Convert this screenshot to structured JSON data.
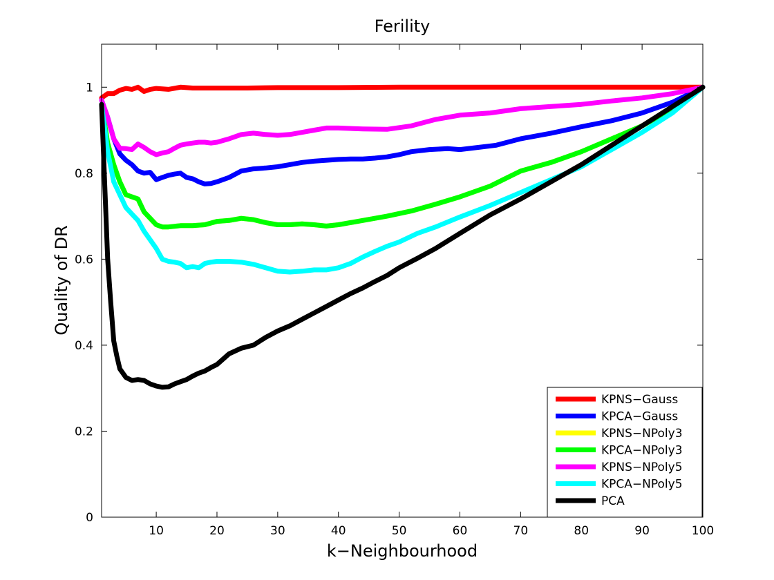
{
  "chart_data": {
    "type": "line",
    "title": "Ferility",
    "xlabel": "k−Neighbourhood",
    "ylabel": "Quality of DR",
    "xlim": [
      1,
      100
    ],
    "ylim": [
      0,
      1.1
    ],
    "xticks": [
      10,
      20,
      30,
      40,
      50,
      60,
      70,
      80,
      90,
      100
    ],
    "xtick_labels": [
      "10",
      "20",
      "30",
      "40",
      "50",
      "60",
      "70",
      "80",
      "90",
      "100"
    ],
    "yticks": [
      0,
      0.2,
      0.4,
      0.6,
      0.8,
      1
    ],
    "ytick_labels": [
      "0",
      "0.2",
      "0.4",
      "0.6",
      "0.8",
      "1"
    ],
    "grid": false,
    "legend_position": "bottom-right",
    "series": [
      {
        "name": "KPNS−Gauss",
        "color": "#ff0000",
        "x": [
          1,
          2,
          3,
          4,
          5,
          6,
          7,
          8,
          9,
          10,
          12,
          14,
          16,
          18,
          20,
          25,
          30,
          40,
          50,
          60,
          70,
          80,
          90,
          100
        ],
        "y": [
          0.975,
          0.985,
          0.985,
          0.993,
          0.997,
          0.995,
          1.0,
          0.99,
          0.995,
          0.997,
          0.995,
          1.0,
          0.998,
          0.998,
          0.998,
          0.998,
          0.999,
          0.999,
          1.0,
          1.0,
          1.0,
          1.0,
          1.0,
          1.0
        ]
      },
      {
        "name": "KPCA−Gauss",
        "color": "#0000ff",
        "x": [
          1,
          2,
          3,
          4,
          5,
          6,
          7,
          8,
          9,
          10,
          11,
          12,
          13,
          14,
          15,
          16,
          17,
          18,
          19,
          20,
          22,
          24,
          26,
          28,
          30,
          32,
          34,
          36,
          38,
          40,
          42,
          44,
          46,
          48,
          50,
          52,
          55,
          58,
          60,
          63,
          66,
          70,
          75,
          80,
          85,
          90,
          95,
          100
        ],
        "y": [
          0.97,
          0.93,
          0.88,
          0.845,
          0.83,
          0.82,
          0.805,
          0.8,
          0.802,
          0.785,
          0.79,
          0.795,
          0.798,
          0.8,
          0.79,
          0.787,
          0.78,
          0.775,
          0.776,
          0.78,
          0.79,
          0.805,
          0.81,
          0.812,
          0.815,
          0.82,
          0.825,
          0.828,
          0.83,
          0.832,
          0.833,
          0.833,
          0.835,
          0.838,
          0.843,
          0.85,
          0.855,
          0.857,
          0.855,
          0.86,
          0.865,
          0.88,
          0.893,
          0.908,
          0.922,
          0.94,
          0.965,
          1.0
        ]
      },
      {
        "name": "KPNS−NPoly3",
        "color": "#ffff00",
        "x": [
          1,
          2,
          3,
          4,
          5,
          6,
          7,
          8,
          9,
          10,
          11,
          12,
          14,
          16,
          18,
          20,
          22,
          24,
          26,
          28,
          30,
          32,
          34,
          36,
          38,
          40,
          44,
          48,
          52,
          56,
          60,
          65,
          70,
          75,
          80,
          85,
          90,
          95,
          100
        ],
        "y": [
          0.96,
          0.87,
          0.82,
          0.78,
          0.75,
          0.745,
          0.74,
          0.71,
          0.695,
          0.68,
          0.675,
          0.675,
          0.678,
          0.678,
          0.68,
          0.688,
          0.69,
          0.695,
          0.692,
          0.685,
          0.68,
          0.68,
          0.682,
          0.68,
          0.677,
          0.68,
          0.69,
          0.7,
          0.712,
          0.728,
          0.745,
          0.77,
          0.805,
          0.825,
          0.85,
          0.88,
          0.91,
          0.95,
          1.0
        ]
      },
      {
        "name": "KPCA−NPoly3",
        "color": "#00ff00",
        "x": [
          1,
          2,
          3,
          4,
          5,
          6,
          7,
          8,
          9,
          10,
          11,
          12,
          14,
          16,
          18,
          20,
          22,
          24,
          26,
          28,
          30,
          32,
          34,
          36,
          38,
          40,
          44,
          48,
          52,
          56,
          60,
          65,
          70,
          75,
          80,
          85,
          90,
          95,
          100
        ],
        "y": [
          0.96,
          0.87,
          0.82,
          0.78,
          0.75,
          0.745,
          0.74,
          0.71,
          0.695,
          0.68,
          0.675,
          0.675,
          0.678,
          0.678,
          0.68,
          0.688,
          0.69,
          0.695,
          0.692,
          0.685,
          0.68,
          0.68,
          0.682,
          0.68,
          0.677,
          0.68,
          0.69,
          0.7,
          0.712,
          0.728,
          0.745,
          0.77,
          0.805,
          0.825,
          0.85,
          0.88,
          0.91,
          0.95,
          1.0
        ]
      },
      {
        "name": "KPNS−NPoly5",
        "color": "#ff00ff",
        "x": [
          1,
          2,
          3,
          4,
          5,
          6,
          7,
          8,
          9,
          10,
          11,
          12,
          13,
          14,
          15,
          16,
          17,
          18,
          19,
          20,
          22,
          24,
          26,
          28,
          30,
          32,
          34,
          36,
          38,
          40,
          44,
          48,
          52,
          56,
          60,
          65,
          70,
          75,
          80,
          85,
          90,
          95,
          100
        ],
        "y": [
          0.97,
          0.93,
          0.88,
          0.858,
          0.857,
          0.855,
          0.868,
          0.86,
          0.85,
          0.843,
          0.847,
          0.85,
          0.858,
          0.865,
          0.868,
          0.87,
          0.872,
          0.872,
          0.87,
          0.872,
          0.88,
          0.89,
          0.893,
          0.89,
          0.888,
          0.89,
          0.895,
          0.9,
          0.905,
          0.905,
          0.903,
          0.902,
          0.91,
          0.925,
          0.935,
          0.94,
          0.95,
          0.955,
          0.96,
          0.968,
          0.975,
          0.985,
          1.0
        ]
      },
      {
        "name": "KPCA−NPoly5",
        "color": "#00ffff",
        "x": [
          1,
          2,
          3,
          4,
          5,
          6,
          7,
          8,
          9,
          10,
          11,
          12,
          13,
          14,
          15,
          16,
          17,
          18,
          19,
          20,
          22,
          24,
          26,
          28,
          30,
          32,
          34,
          36,
          38,
          40,
          42,
          44,
          46,
          48,
          50,
          53,
          56,
          60,
          65,
          70,
          75,
          80,
          85,
          90,
          95,
          100
        ],
        "y": [
          0.96,
          0.85,
          0.78,
          0.75,
          0.72,
          0.705,
          0.69,
          0.665,
          0.645,
          0.625,
          0.6,
          0.595,
          0.593,
          0.59,
          0.58,
          0.583,
          0.58,
          0.59,
          0.593,
          0.595,
          0.595,
          0.593,
          0.588,
          0.58,
          0.572,
          0.57,
          0.572,
          0.575,
          0.575,
          0.58,
          0.59,
          0.605,
          0.618,
          0.63,
          0.64,
          0.66,
          0.675,
          0.698,
          0.725,
          0.755,
          0.785,
          0.815,
          0.855,
          0.895,
          0.94,
          1.0
        ]
      },
      {
        "name": "PCA",
        "color": "#000000",
        "x": [
          1,
          1.5,
          2,
          2.5,
          3,
          3.5,
          4,
          5,
          6,
          7,
          8,
          9,
          10,
          11,
          12,
          13,
          14,
          15,
          16,
          17,
          18,
          19,
          20,
          22,
          24,
          26,
          28,
          30,
          32,
          34,
          36,
          38,
          40,
          42,
          44,
          46,
          48,
          50,
          53,
          56,
          60,
          65,
          70,
          75,
          80,
          85,
          90,
          95,
          100
        ],
        "y": [
          0.96,
          0.78,
          0.6,
          0.5,
          0.41,
          0.375,
          0.345,
          0.325,
          0.318,
          0.32,
          0.318,
          0.31,
          0.305,
          0.302,
          0.303,
          0.31,
          0.315,
          0.32,
          0.328,
          0.335,
          0.34,
          0.348,
          0.355,
          0.38,
          0.393,
          0.4,
          0.418,
          0.433,
          0.445,
          0.46,
          0.475,
          0.49,
          0.505,
          0.52,
          0.533,
          0.548,
          0.562,
          0.58,
          0.602,
          0.625,
          0.66,
          0.703,
          0.74,
          0.78,
          0.82,
          0.865,
          0.91,
          0.955,
          1.0
        ]
      }
    ]
  }
}
